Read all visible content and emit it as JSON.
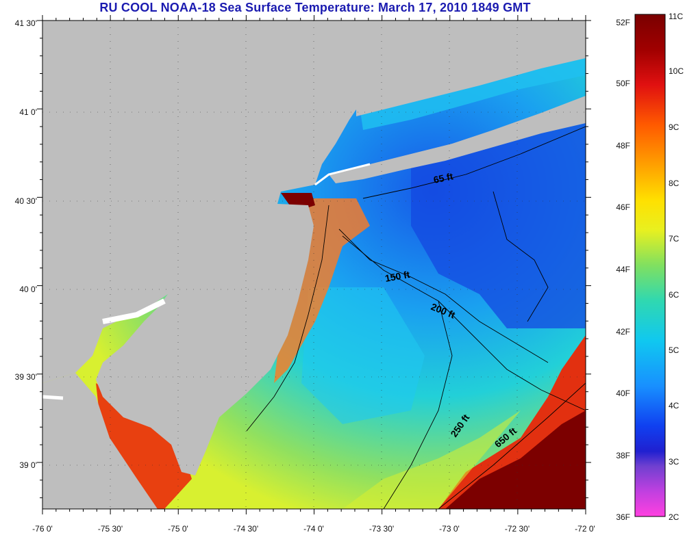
{
  "title": "RU COOL  NOAA-18  Sea Surface Temperature:  March 17, 2010 1849 GMT",
  "map": {
    "lon_range": [
      -76,
      -72
    ],
    "lat_range": [
      38.77,
      41.5
    ],
    "lon_ticks": [
      "-76 0'",
      "-75 30'",
      "-75 0'",
      "-74 30'",
      "-74 0'",
      "-73 30'",
      "-73 0'",
      "-72 30'",
      "-72 0'"
    ],
    "lat_ticks": [
      "41 30'",
      "41 0'",
      "40 30'",
      "40 0'",
      "39 30'",
      "39 0'"
    ],
    "land_color": "#bebebe",
    "contour_labels": [
      "65 ft",
      "150 ft",
      "200 ft",
      "250 ft",
      "650 ft"
    ]
  },
  "colorbar": {
    "fahrenheit_labels": [
      "52F",
      "50F",
      "48F",
      "46F",
      "44F",
      "42F",
      "40F",
      "38F",
      "36F"
    ],
    "celsius_labels": [
      "11C",
      "10C",
      "9C",
      "8C",
      "7C",
      "6C",
      "5C",
      "4C",
      "3C",
      "2C"
    ],
    "colors": [
      "#7a0000",
      "#b00000",
      "#e01010",
      "#ff5000",
      "#ff9a00",
      "#ffd000",
      "#f0f000",
      "#b8f040",
      "#60e080",
      "#20d8c0",
      "#10c8f0",
      "#1890ff",
      "#1040f0",
      "#1818d0",
      "#8040d0",
      "#ff40e0"
    ]
  }
}
